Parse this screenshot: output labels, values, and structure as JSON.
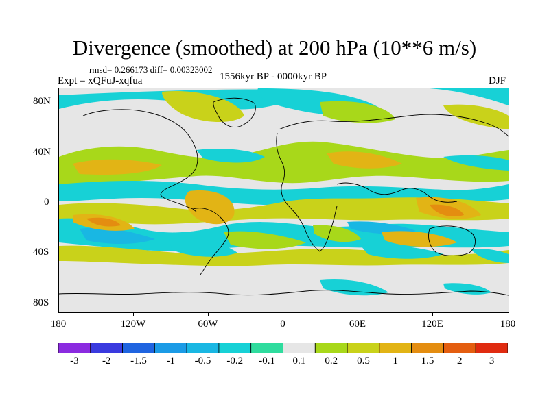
{
  "title": "Divergence (smoothed) at 200 hPa (10**6 m/s)",
  "stats": "rmsd= 0.266173 diff= 0.00323002",
  "experiment": "Expt = xQFuJ-xqfua",
  "period": "1556kyr BP - 0000kyr BP",
  "season": "DJF",
  "y_axis_labels": [
    "80N",
    "40N",
    "0",
    "40S",
    "80S"
  ],
  "x_axis_labels": [
    "180",
    "120W",
    "60W",
    "0",
    "60E",
    "120E",
    "180"
  ],
  "colorbar": {
    "labels": [
      "-3",
      "-2",
      "-1.5",
      "-1",
      "-0.5",
      "-0.2",
      "-0.1",
      "0.1",
      "0.2",
      "0.5",
      "1",
      "1.5",
      "2",
      "3"
    ],
    "colors": [
      "#8b2be0",
      "#3a3adf",
      "#1f64e0",
      "#1b9be6",
      "#19b7e3",
      "#17d1d6",
      "#2fdc9e",
      "#e6e6e6",
      "#a8d81a",
      "#c9d21a",
      "#e2b415",
      "#e48d10",
      "#e45e10",
      "#e02b10"
    ]
  },
  "palette": {
    "background": "#e6e6e6",
    "cyan": "#17d1d6",
    "sky": "#19b7e3",
    "blue": "#1b9be6",
    "green": "#2fdc9e",
    "lime": "#a8d81a",
    "yellow": "#c9d21a",
    "amber": "#e2b415",
    "orange": "#e48d10"
  }
}
